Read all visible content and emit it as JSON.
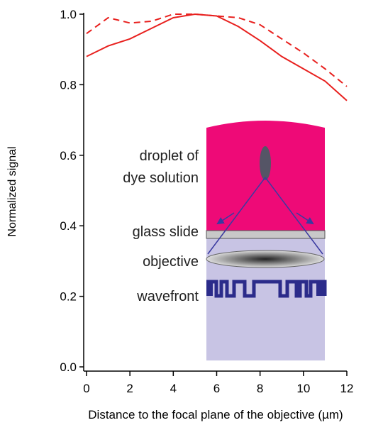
{
  "chart_data": {
    "type": "line",
    "x": [
      0,
      1,
      2,
      3,
      4,
      5,
      6,
      7,
      8,
      9,
      10,
      11,
      12
    ],
    "series": [
      {
        "color": "#e8201e",
        "style": "solid",
        "values": [
          0.88,
          0.91,
          0.93,
          0.96,
          0.99,
          1.0,
          0.995,
          0.965,
          0.925,
          0.88,
          0.845,
          0.81,
          0.755
        ]
      },
      {
        "color": "#e8201e",
        "style": "dashed",
        "values": [
          0.945,
          0.99,
          0.975,
          0.98,
          1.0,
          1.0,
          0.995,
          0.99,
          0.97,
          0.93,
          0.89,
          0.845,
          0.795
        ]
      }
    ],
    "xlabel": "Distance to the focal plane of the objective (µm)",
    "ylabel": "Normalized signal",
    "xlim": [
      -0.13,
      12
    ],
    "ylim": [
      -0.012,
      1.004
    ],
    "xticks": [
      0,
      2,
      4,
      6,
      8,
      10,
      12
    ],
    "yticks": [
      {
        "value": 0,
        "label": "0.0"
      },
      0.2,
      0.4,
      0.6,
      0.8,
      {
        "value": 1,
        "label": "1.0"
      }
    ],
    "grid": false
  },
  "diagram": {
    "labels": [
      "droplet of",
      "dye solution",
      "glass slide",
      "objective",
      "wavefront"
    ]
  }
}
